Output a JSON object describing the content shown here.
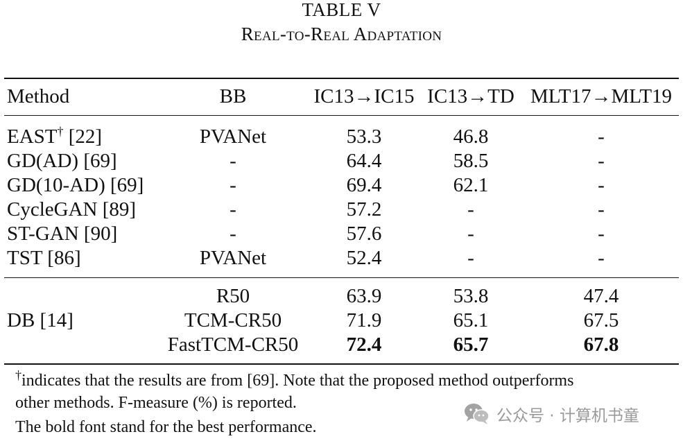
{
  "caption": {
    "label": "TABLE V",
    "title": "Real-to-Real Adaptation"
  },
  "table": {
    "headers": {
      "method": "Method",
      "bb": "BB",
      "col1": "IC13→IC15",
      "col2": "IC13→TD",
      "col3": "MLT17→MLT19"
    },
    "rows": [
      {
        "method": "EAST",
        "method_sup": "†",
        "method_ref": " [22]",
        "bb": "PVANet",
        "v1": "53.3",
        "v2": "46.8",
        "v3": "-"
      },
      {
        "method": "GD(AD) [69]",
        "bb": "-",
        "v1": "64.4",
        "v2": "58.5",
        "v3": "-"
      },
      {
        "method": "GD(10-AD) [69]",
        "bb": "-",
        "v1": "69.4",
        "v2": "62.1",
        "v3": "-"
      },
      {
        "method": "CycleGAN [89]",
        "bb": "-",
        "v1": "57.2",
        "v2": "-",
        "v3": "-"
      },
      {
        "method": "ST-GAN [90]",
        "bb": "-",
        "v1": "57.6",
        "v2": "-",
        "v3": "-"
      },
      {
        "method": "TST [86]",
        "bb": "PVANet",
        "v1": "52.4",
        "v2": "-",
        "v3": "-"
      }
    ],
    "group": {
      "method": "DB [14]",
      "rows": [
        {
          "bb": "R50",
          "v1": "63.9",
          "v2": "53.8",
          "v3": "47.4"
        },
        {
          "bb": "TCM-CR50",
          "v1": "71.9",
          "v2": "65.1",
          "v3": "67.5"
        },
        {
          "bb": "FastTCM-CR50",
          "v1": "72.4",
          "v2": "65.7",
          "v3": "67.8"
        }
      ]
    }
  },
  "notes": {
    "dagger": "†",
    "line1": "indicates that the results are from [69]. Note that the proposed method outperforms",
    "line2": "other methods. F-measure (%) is reported.",
    "line3": "The bold font stand for the best performance."
  },
  "watermark": {
    "icon": "wechat-icon",
    "text": "公众号 · 计算机书童"
  }
}
